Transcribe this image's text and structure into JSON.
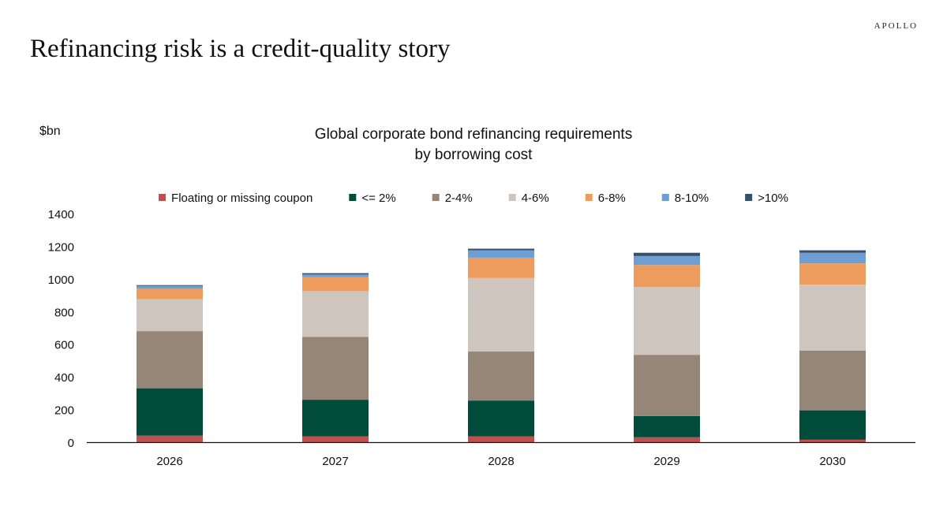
{
  "brand": "APOLLO",
  "slide_title": "Refinancing risk is a credit-quality story",
  "chart_data": {
    "type": "bar",
    "stacked": true,
    "title_lines": [
      "Global corporate bond refinancing requirements",
      "by borrowing cost"
    ],
    "unit_label": "$bn",
    "categories": [
      "2026",
      "2027",
      "2028",
      "2029",
      "2030"
    ],
    "ylim": [
      0,
      1400
    ],
    "yticks": [
      0,
      200,
      400,
      600,
      800,
      1000,
      1200,
      1400
    ],
    "grid": false,
    "legend_position": "top",
    "series": [
      {
        "name": "Floating or missing coupon",
        "color": "#c0504d",
        "values": [
          40,
          35,
          35,
          30,
          15
        ]
      },
      {
        "name": "<= 2%",
        "color": "#004b3a",
        "values": [
          290,
          225,
          220,
          130,
          180
        ]
      },
      {
        "name": "2-4%",
        "color": "#958677",
        "values": [
          350,
          385,
          300,
          375,
          365
        ]
      },
      {
        "name": "4-6%",
        "color": "#cdc5be",
        "values": [
          195,
          280,
          450,
          415,
          405
        ]
      },
      {
        "name": "6-8%",
        "color": "#ee9c5e",
        "values": [
          65,
          85,
          125,
          135,
          130
        ]
      },
      {
        "name": "8-10%",
        "color": "#6f9fd2",
        "values": [
          17,
          17,
          45,
          55,
          65
        ]
      },
      {
        "name": ">10%",
        "color": "#34516e",
        "values": [
          5,
          8,
          10,
          20,
          15
        ]
      }
    ]
  }
}
